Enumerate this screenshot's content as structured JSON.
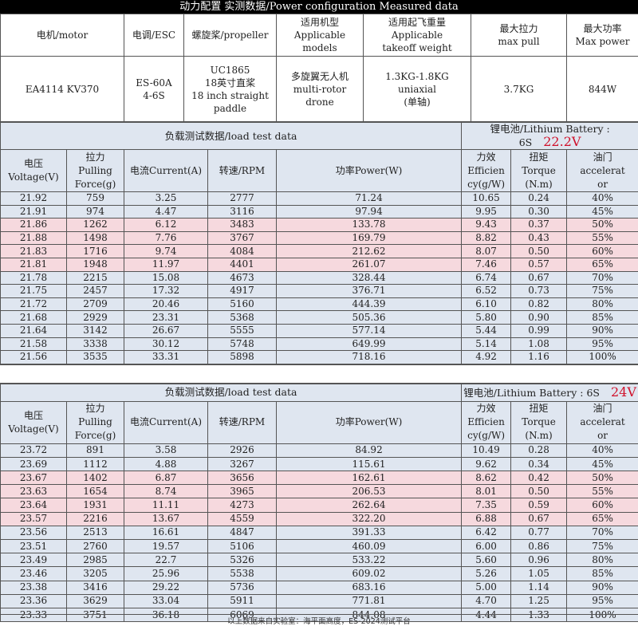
{
  "title": "动力配置 实测数据/Power configuration Measured data",
  "spec": {
    "headers": [
      "电机/motor",
      "电调/ESC",
      "螺旋桨/propeller",
      "适用机型\nApplicable\nmodels",
      "适用起飞重量\nApplicable\ntakeoff weight",
      "最大拉力\nmax pull",
      "最大功率\nMax power"
    ],
    "values": [
      "EA4114 KV370",
      "ES-60A\n4-6S",
      "UC1865\n18英寸直桨\n18 inch straight\npaddle",
      "多旋翼无人机\nmulti-rotor\ndrone",
      "1.3KG-1.8KG\nuniaxial\n(单轴)",
      "3.7KG",
      "844W"
    ]
  },
  "columns": [
    "电压\nVoltage(V)",
    "拉力\nPulling\nForce(g)",
    "电流Current(A)",
    "转速/RPM",
    "功率Power(W)",
    "力效\nEfficien\ncy(g/W)",
    "扭矩\nTorque\n(N.m)",
    "油门\naccelerat\nor"
  ],
  "highlight_color": "#f6d9de",
  "tests": [
    {
      "section": "负载测试数据/load test data",
      "battery": "锂电池/Lithium Battery : 6S",
      "voltage": "22.2V",
      "rows": [
        [
          "21.92",
          "759",
          "3.25",
          "2777",
          "71.24",
          "10.65",
          "0.24",
          "40%"
        ],
        [
          "21.91",
          "974",
          "4.47",
          "3116",
          "97.94",
          "9.95",
          "0.30",
          "45%"
        ],
        [
          "21.86",
          "1262",
          "6.12",
          "3483",
          "133.78",
          "9.43",
          "0.37",
          "50%"
        ],
        [
          "21.88",
          "1498",
          "7.76",
          "3767",
          "169.79",
          "8.82",
          "0.43",
          "55%"
        ],
        [
          "21.83",
          "1716",
          "9.74",
          "4084",
          "212.62",
          "8.07",
          "0.50",
          "60%"
        ],
        [
          "21.81",
          "1948",
          "11.97",
          "4401",
          "261.07",
          "7.46",
          "0.57",
          "65%"
        ],
        [
          "21.78",
          "2215",
          "15.08",
          "4673",
          "328.44",
          "6.74",
          "0.67",
          "70%"
        ],
        [
          "21.75",
          "2457",
          "17.32",
          "4917",
          "376.71",
          "6.52",
          "0.73",
          "75%"
        ],
        [
          "21.72",
          "2709",
          "20.46",
          "5160",
          "444.39",
          "6.10",
          "0.82",
          "80%"
        ],
        [
          "21.68",
          "2929",
          "23.31",
          "5368",
          "505.36",
          "5.80",
          "0.90",
          "85%"
        ],
        [
          "21.64",
          "3142",
          "26.67",
          "5555",
          "577.14",
          "5.44",
          "0.99",
          "90%"
        ],
        [
          "21.58",
          "3338",
          "30.12",
          "5748",
          "649.99",
          "5.14",
          "1.08",
          "95%"
        ],
        [
          "21.56",
          "3535",
          "33.31",
          "5898",
          "718.16",
          "4.92",
          "1.16",
          "100%"
        ]
      ],
      "highlighted_rows": [
        2,
        3,
        4,
        5
      ]
    },
    {
      "section": "负载测试数据/load test data",
      "battery": "锂电池/Lithium Battery : 6S",
      "voltage": "24V",
      "rows": [
        [
          "23.72",
          "891",
          "3.58",
          "2926",
          "84.92",
          "10.49",
          "0.28",
          "40%"
        ],
        [
          "23.69",
          "1112",
          "4.88",
          "3267",
          "115.61",
          "9.62",
          "0.34",
          "45%"
        ],
        [
          "23.67",
          "1402",
          "6.87",
          "3656",
          "162.61",
          "8.62",
          "0.42",
          "50%"
        ],
        [
          "23.63",
          "1654",
          "8.74",
          "3965",
          "206.53",
          "8.01",
          "0.50",
          "55%"
        ],
        [
          "23.64",
          "1931",
          "11.11",
          "4273",
          "262.64",
          "7.35",
          "0.59",
          "60%"
        ],
        [
          "23.57",
          "2216",
          "13.67",
          "4559",
          "322.20",
          "6.88",
          "0.67",
          "65%"
        ],
        [
          "23.56",
          "2513",
          "16.61",
          "4847",
          "391.33",
          "6.42",
          "0.77",
          "70%"
        ],
        [
          "23.51",
          "2760",
          "19.57",
          "5106",
          "460.09",
          "6.00",
          "0.86",
          "75%"
        ],
        [
          "23.49",
          "2985",
          "22.7",
          "5326",
          "533.22",
          "5.60",
          "0.96",
          "80%"
        ],
        [
          "23.46",
          "3205",
          "25.96",
          "5538",
          "609.02",
          "5.26",
          "1.05",
          "85%"
        ],
        [
          "23.38",
          "3416",
          "29.22",
          "5736",
          "683.16",
          "5.00",
          "1.14",
          "90%"
        ],
        [
          "23.36",
          "3629",
          "33.04",
          "5911",
          "771.81",
          "4.70",
          "1.25",
          "95%"
        ],
        [
          "23.33",
          "3751",
          "36.18",
          "6069",
          "844.08",
          "4.44",
          "1.33",
          "100%"
        ]
      ],
      "highlighted_rows": [
        2,
        3,
        4,
        5
      ]
    }
  ],
  "footer": "以上数据来自实验室：海平面高度，ES-2024测试平台"
}
